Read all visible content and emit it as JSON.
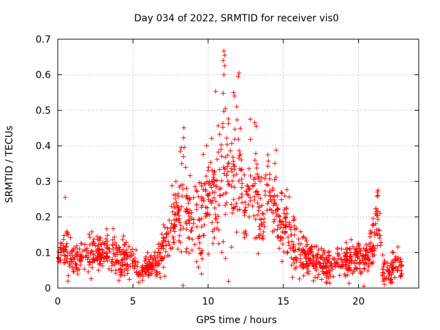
{
  "chart_data": {
    "type": "scatter",
    "title": "Day 034 of 2022, SRMTID for receiver vis0",
    "xlabel": "GPS time / hours",
    "ylabel": "SRMTID / TECUs",
    "xlim": [
      0,
      24
    ],
    "ylim": [
      0,
      0.7
    ],
    "xticks": [
      0,
      5,
      10,
      15,
      20
    ],
    "yticks": [
      0,
      0.1,
      0.2,
      0.3,
      0.4,
      0.5,
      0.6,
      0.7
    ],
    "xtick_labels": [
      "0",
      "5",
      "10",
      "15",
      "20"
    ],
    "ytick_labels": [
      "0",
      "0.1",
      "0.2",
      "0.3",
      "0.4",
      "0.5",
      "0.6",
      "0.7"
    ],
    "grid": true,
    "marker": "+",
    "series": [
      {
        "name": "vis0",
        "color": "#ff0000",
        "profile": [
          {
            "t": 0.0,
            "v": 0.08,
            "s": 0.02
          },
          {
            "t": 0.5,
            "v": 0.12,
            "s": 0.04
          },
          {
            "t": 1.0,
            "v": 0.08,
            "s": 0.025
          },
          {
            "t": 2.0,
            "v": 0.1,
            "s": 0.03
          },
          {
            "t": 3.0,
            "v": 0.1,
            "s": 0.03
          },
          {
            "t": 4.0,
            "v": 0.09,
            "s": 0.03
          },
          {
            "t": 5.0,
            "v": 0.07,
            "s": 0.02
          },
          {
            "t": 5.5,
            "v": 0.05,
            "s": 0.015
          },
          {
            "t": 6.5,
            "v": 0.07,
            "s": 0.02
          },
          {
            "t": 7.0,
            "v": 0.11,
            "s": 0.03
          },
          {
            "t": 7.5,
            "v": 0.17,
            "s": 0.04
          },
          {
            "t": 8.0,
            "v": 0.21,
            "s": 0.05
          },
          {
            "t": 8.3,
            "v": 0.25,
            "s": 0.08
          },
          {
            "t": 9.0,
            "v": 0.19,
            "s": 0.05
          },
          {
            "t": 9.5,
            "v": 0.18,
            "s": 0.06
          },
          {
            "t": 10.0,
            "v": 0.28,
            "s": 0.07
          },
          {
            "t": 10.5,
            "v": 0.27,
            "s": 0.07
          },
          {
            "t": 11.0,
            "v": 0.35,
            "s": 0.11
          },
          {
            "t": 11.5,
            "v": 0.33,
            "s": 0.09
          },
          {
            "t": 12.0,
            "v": 0.32,
            "s": 0.1
          },
          {
            "t": 12.5,
            "v": 0.2,
            "s": 0.06
          },
          {
            "t": 13.0,
            "v": 0.3,
            "s": 0.08
          },
          {
            "t": 13.5,
            "v": 0.22,
            "s": 0.07
          },
          {
            "t": 14.0,
            "v": 0.28,
            "s": 0.06
          },
          {
            "t": 14.5,
            "v": 0.22,
            "s": 0.06
          },
          {
            "t": 15.0,
            "v": 0.16,
            "s": 0.05
          },
          {
            "t": 15.5,
            "v": 0.14,
            "s": 0.05
          },
          {
            "t": 16.0,
            "v": 0.1,
            "s": 0.04
          },
          {
            "t": 17.0,
            "v": 0.08,
            "s": 0.025
          },
          {
            "t": 18.0,
            "v": 0.06,
            "s": 0.02
          },
          {
            "t": 19.0,
            "v": 0.08,
            "s": 0.025
          },
          {
            "t": 20.0,
            "v": 0.09,
            "s": 0.03
          },
          {
            "t": 20.5,
            "v": 0.08,
            "s": 0.03
          },
          {
            "t": 21.0,
            "v": 0.14,
            "s": 0.05
          },
          {
            "t": 21.3,
            "v": 0.2,
            "s": 0.05
          },
          {
            "t": 21.6,
            "v": 0.05,
            "s": 0.02
          },
          {
            "t": 22.0,
            "v": 0.04,
            "s": 0.02
          },
          {
            "t": 22.5,
            "v": 0.07,
            "s": 0.025
          },
          {
            "t": 22.8,
            "v": 0.06,
            "s": 0.02
          }
        ],
        "peaks": [
          {
            "x": 11.05,
            "y": 0.667
          },
          {
            "x": 11.1,
            "y": 0.655
          },
          {
            "x": 11.0,
            "y": 0.64
          },
          {
            "x": 11.1,
            "y": 0.625
          },
          {
            "x": 11.05,
            "y": 0.6
          },
          {
            "x": 12.05,
            "y": 0.605
          },
          {
            "x": 12.0,
            "y": 0.595
          },
          {
            "x": 10.5,
            "y": 0.553
          },
          {
            "x": 11.0,
            "y": 0.548
          },
          {
            "x": 11.7,
            "y": 0.55
          },
          {
            "x": 11.75,
            "y": 0.54
          },
          {
            "x": 11.9,
            "y": 0.51
          },
          {
            "x": 11.15,
            "y": 0.505
          },
          {
            "x": 12.8,
            "y": 0.475
          },
          {
            "x": 13.1,
            "y": 0.465
          },
          {
            "x": 13.2,
            "y": 0.455
          },
          {
            "x": 8.2,
            "y": 0.395
          },
          {
            "x": 8.15,
            "y": 0.385
          },
          {
            "x": 8.25,
            "y": 0.35
          },
          {
            "x": 21.3,
            "y": 0.275
          },
          {
            "x": 21.3,
            "y": 0.26
          },
          {
            "x": 0.5,
            "y": 0.255
          }
        ],
        "time_range": [
          0.0,
          22.9
        ],
        "approx_point_count": 1400
      }
    ]
  }
}
